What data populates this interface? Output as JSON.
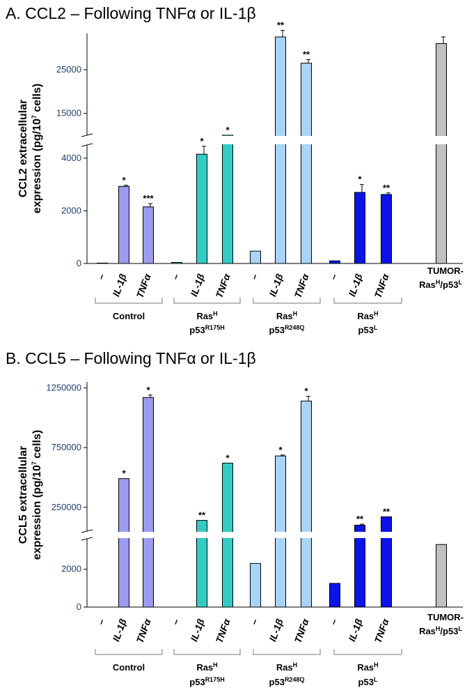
{
  "chart_data": [
    {
      "type": "bar",
      "title": "A. CCL2 – Following TNFα or IL-1β",
      "ylabel_main": "CCL2 extracellular",
      "ylabel_sub": "expression (pg/10",
      "ylabel_sup": "7",
      "ylabel_end": " cells)",
      "broken_axis": true,
      "lower_ticks": [
        "0",
        "2000",
        "4000"
      ],
      "upper_ticks": [
        "15000",
        "25000"
      ],
      "categories": [
        "-",
        "IL-1β",
        "TNFα",
        "-",
        "IL-1β",
        "TNFα",
        "-",
        "IL-1β",
        "TNFα",
        "-",
        "IL-1β",
        "TNFα",
        "TUMOR-RasH/p53L"
      ],
      "values": [
        15,
        2930,
        2150,
        40,
        4150,
        9800,
        470,
        32500,
        26500,
        100,
        2700,
        2620,
        31000
      ],
      "errors": [
        0,
        40,
        120,
        0,
        300,
        200,
        0,
        1500,
        800,
        0,
        300,
        60,
        1500
      ],
      "stars": [
        "",
        "*",
        "***",
        "",
        "*",
        "*",
        "",
        "**",
        "**",
        "",
        "*",
        "**",
        ""
      ],
      "colors": [
        "#9b9bf0",
        "#9b9bf0",
        "#9b9bf0",
        "#33ccc4",
        "#33ccc4",
        "#33ccc4",
        "#a8d4f8",
        "#a8d4f8",
        "#a8d4f8",
        "#0a14e8",
        "#0a14e8",
        "#0a14e8",
        "#c0c0c0"
      ],
      "groups": [
        {
          "line1": "Control",
          "line2": "",
          "line2_sup": ""
        },
        {
          "line1": "Ras",
          "line1_sup": "H",
          "line2": "p53",
          "line2_sup": "R175H"
        },
        {
          "line1": "Ras",
          "line1_sup": "H",
          "line2": "p53",
          "line2_sup": "R248Q"
        },
        {
          "line1": "Ras",
          "line1_sup": "H",
          "line2": "p53",
          "line2_sup": "L"
        }
      ],
      "tumor_label_line1": "TUMOR-",
      "tumor_label_line2": "Ras",
      "tumor_label_sup1": "H",
      "tumor_label_mid": "/p53",
      "tumor_label_sup2": "L"
    },
    {
      "type": "bar",
      "title": "B.  CCL5 – Following TNFα or IL-1β",
      "ylabel_main": "CCL5 extracellular",
      "ylabel_sub": "expression (pg/10",
      "ylabel_sup": "7",
      "ylabel_end": " cells)",
      "broken_axis": true,
      "lower_ticks": [
        "0",
        "2000"
      ],
      "upper_ticks": [
        "250000",
        "750000",
        "1250000"
      ],
      "categories": [
        "-",
        "IL-1β",
        "TNFα",
        "-",
        "IL-1β",
        "TNFα",
        "-",
        "IL-1β",
        "TNFα",
        "-",
        "IL-1β",
        "TNFα",
        "TUMOR-RasH/p53L"
      ],
      "values": [
        0,
        490000,
        1170000,
        0,
        140000,
        620000,
        2300,
        680000,
        1140000,
        1250,
        100000,
        170000,
        3300
      ],
      "errors": [
        0,
        0,
        20000,
        0,
        0,
        0,
        0,
        8000,
        40000,
        0,
        8000,
        0,
        0
      ],
      "stars": [
        "",
        "*",
        "*",
        "",
        "**",
        "*",
        "",
        "*",
        "*",
        "",
        "**",
        "**",
        ""
      ],
      "colors": [
        "#9b9bf0",
        "#9b9bf0",
        "#9b9bf0",
        "#33ccc4",
        "#33ccc4",
        "#33ccc4",
        "#a8d4f8",
        "#a8d4f8",
        "#a8d4f8",
        "#0a14e8",
        "#0a14e8",
        "#0a14e8",
        "#c0c0c0"
      ],
      "groups": [
        {
          "line1": "Control",
          "line2": "",
          "line2_sup": ""
        },
        {
          "line1": "Ras",
          "line1_sup": "H",
          "line2": "p53",
          "line2_sup": "R175H"
        },
        {
          "line1": "Ras",
          "line1_sup": "H",
          "line2": "p53",
          "line2_sup": "R248Q"
        },
        {
          "line1": "Ras",
          "line1_sup": "H",
          "line2": "p53",
          "line2_sup": "L"
        }
      ],
      "tumor_label_line1": "TUMOR-",
      "tumor_label_line2": "Ras",
      "tumor_label_sup1": "H",
      "tumor_label_mid": "/p53",
      "tumor_label_sup2": "L"
    }
  ]
}
